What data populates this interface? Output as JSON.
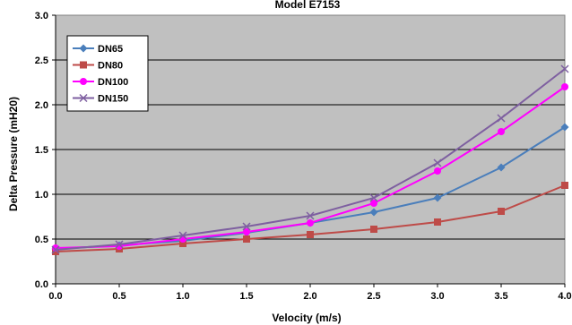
{
  "chart_data": {
    "type": "line",
    "title": "Model E7153",
    "xlabel": "Velocity  (m/s)",
    "ylabel": "Delta Pressure (mH20)",
    "x": [
      0.0,
      0.5,
      1.0,
      1.5,
      2.0,
      2.5,
      3.0,
      3.5,
      4.0
    ],
    "xlim": [
      0.0,
      4.0
    ],
    "ylim": [
      0.0,
      3.0
    ],
    "xticks": [
      "0.0",
      "0.5",
      "1.0",
      "1.5",
      "2.0",
      "2.5",
      "3.0",
      "3.5",
      "4.0"
    ],
    "yticks": [
      "0.0",
      "0.5",
      "1.0",
      "1.5",
      "2.0",
      "2.5",
      "3.0"
    ],
    "grid": true,
    "legend_position": "top-left",
    "plot_background": "#c0c0c0",
    "series": [
      {
        "name": "DN65",
        "color": "#4a7ebb",
        "marker": "diamond",
        "values": [
          0.39,
          0.43,
          0.48,
          0.57,
          0.68,
          0.8,
          0.96,
          1.3,
          1.75
        ]
      },
      {
        "name": "DN80",
        "color": "#be4b48",
        "marker": "square",
        "values": [
          0.36,
          0.39,
          0.45,
          0.5,
          0.55,
          0.61,
          0.69,
          0.81,
          1.1
        ]
      },
      {
        "name": "DN100",
        "color": "#ff00ff",
        "marker": "circle",
        "values": [
          0.4,
          0.42,
          0.5,
          0.58,
          0.68,
          0.9,
          1.26,
          1.7,
          2.2
        ]
      },
      {
        "name": "DN150",
        "color": "#7e5fa0",
        "marker": "x",
        "values": [
          0.38,
          0.44,
          0.54,
          0.64,
          0.76,
          0.96,
          1.35,
          1.85,
          2.4
        ]
      }
    ]
  }
}
